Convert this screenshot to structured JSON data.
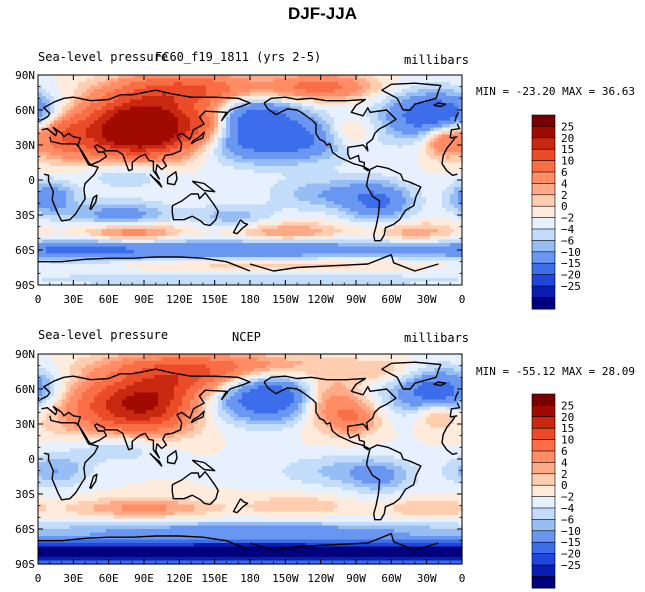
{
  "page": {
    "title": "DJF-JJA"
  },
  "colors": {
    "scale": [
      "#00007f",
      "#0a1eb4",
      "#1e46dc",
      "#3c6eeb",
      "#6996f0",
      "#96bef5",
      "#c3dcfa",
      "#e6f0ff",
      "#ffebdc",
      "#ffcdaf",
      "#ffaa87",
      "#ff8c64",
      "#fa6e46",
      "#eb4b28",
      "#c8280f",
      "#a00a00",
      "#780000"
    ]
  },
  "panels": [
    {
      "left_label": "Sea-level pressure",
      "center_label": "FC60_f19_1811 (yrs 2-5)",
      "units": "millibars",
      "stats": "MIN = -23.20 MAX =  36.63"
    },
    {
      "left_label": "Sea-level pressure",
      "center_label": "NCEP",
      "units": "millibars",
      "stats": "MIN = -55.12 MAX =  28.09"
    }
  ],
  "colorbar_labels": [
    "25",
    "20",
    "15",
    "10",
    "6",
    "4",
    "2",
    "0",
    "−2",
    "−4",
    "−6",
    "−10",
    "−15",
    "−20",
    "−25"
  ],
  "chart_data": [
    {
      "type": "heatmap",
      "title": "Sea-level pressure FC60_f19_1811 (yrs 2-5)",
      "units": "millibars",
      "x_ticks": [
        "0",
        "30E",
        "60E",
        "90E",
        "120E",
        "150E",
        "180",
        "150W",
        "120W",
        "90W",
        "60W",
        "30W",
        "0"
      ],
      "y_ticks": [
        "90N",
        "60N",
        "30N",
        "0",
        "30S",
        "60S",
        "90S"
      ],
      "xlim": [
        0,
        360
      ],
      "ylim": [
        -90,
        90
      ],
      "levels": [
        -25,
        -20,
        -15,
        -10,
        -6,
        -4,
        -2,
        0,
        2,
        4,
        6,
        10,
        15,
        20,
        25
      ],
      "min": -23.2,
      "max": 36.63,
      "features": [
        {
          "lon": 95,
          "lat": 45,
          "amp": 30,
          "slon": 30,
          "slat": 18
        },
        {
          "lon": 60,
          "lat": 40,
          "amp": 14,
          "slon": 35,
          "slat": 20
        },
        {
          "lon": 140,
          "lat": 48,
          "amp": 8,
          "slon": 15,
          "slat": 12
        },
        {
          "lon": 130,
          "lat": 78,
          "amp": 14,
          "slon": 40,
          "slat": 10
        },
        {
          "lon": 240,
          "lat": 80,
          "amp": 12,
          "slon": 30,
          "slat": 8
        },
        {
          "lon": 345,
          "lat": 35,
          "amp": 12,
          "slon": 12,
          "slat": 10
        },
        {
          "lon": 20,
          "lat": 40,
          "amp": 10,
          "slon": 15,
          "slat": 12
        },
        {
          "lon": 265,
          "lat": 40,
          "amp": 6,
          "slon": 15,
          "slat": 10
        },
        {
          "lon": 200,
          "lat": 35,
          "amp": -14,
          "slon": 45,
          "slat": 14
        },
        {
          "lon": 340,
          "lat": 55,
          "amp": -16,
          "slon": 30,
          "slat": 14
        },
        {
          "lon": 185,
          "lat": 58,
          "amp": -10,
          "slon": 25,
          "slat": 10
        },
        {
          "lon": 75,
          "lat": 10,
          "amp": -8,
          "slon": 30,
          "slat": 12
        },
        {
          "lon": 10,
          "lat": -15,
          "amp": -9,
          "slon": 15,
          "slat": 10
        },
        {
          "lon": 290,
          "lat": -20,
          "amp": -9,
          "slon": 20,
          "slat": 12
        },
        {
          "lon": 250,
          "lat": -12,
          "amp": -6,
          "slon": 35,
          "slat": 10
        },
        {
          "lon": 70,
          "lat": -30,
          "amp": -8,
          "slon": 30,
          "slat": 8
        },
        {
          "lon": 165,
          "lat": -32,
          "amp": -5,
          "slon": 25,
          "slat": 8
        },
        {
          "lon": 80,
          "lat": -45,
          "amp": 9,
          "slon": 30,
          "slat": 6
        },
        {
          "lon": 210,
          "lat": -45,
          "amp": 7,
          "slon": 35,
          "slat": 6
        },
        {
          "lon": 320,
          "lat": -45,
          "amp": 6,
          "slon": 25,
          "slat": 6
        },
        {
          "lon": 180,
          "lat": -60,
          "amp": -10,
          "slon": 120,
          "slat": 7
        },
        {
          "lon": 30,
          "lat": -60,
          "amp": -8,
          "slon": 40,
          "slat": 6
        },
        {
          "lon": 200,
          "lat": -72,
          "amp": 5,
          "slon": 90,
          "slat": 5
        },
        {
          "lon": 180,
          "lat": -85,
          "amp": -3,
          "slon": 200,
          "slat": 6
        }
      ]
    },
    {
      "type": "heatmap",
      "title": "Sea-level pressure NCEP",
      "units": "millibars",
      "x_ticks": [
        "0",
        "30E",
        "60E",
        "90E",
        "120E",
        "150E",
        "180",
        "150W",
        "120W",
        "90W",
        "60W",
        "30W",
        "0"
      ],
      "y_ticks": [
        "90N",
        "60N",
        "30N",
        "0",
        "30S",
        "60S",
        "90S"
      ],
      "xlim": [
        0,
        360
      ],
      "ylim": [
        -90,
        90
      ],
      "levels": [
        -25,
        -20,
        -15,
        -10,
        -6,
        -4,
        -2,
        0,
        2,
        4,
        6,
        10,
        15,
        20,
        25
      ],
      "min": -55.12,
      "max": 28.09,
      "features": [
        {
          "lon": 95,
          "lat": 48,
          "amp": 20,
          "slon": 28,
          "slat": 18
        },
        {
          "lon": 55,
          "lat": 45,
          "amp": 12,
          "slon": 35,
          "slat": 18
        },
        {
          "lon": 130,
          "lat": 68,
          "amp": 10,
          "slon": 30,
          "slat": 10
        },
        {
          "lon": 150,
          "lat": 80,
          "amp": 10,
          "slon": 60,
          "slat": 8
        },
        {
          "lon": 245,
          "lat": 50,
          "amp": 12,
          "slon": 20,
          "slat": 15
        },
        {
          "lon": 268,
          "lat": 35,
          "amp": 8,
          "slon": 15,
          "slat": 10
        },
        {
          "lon": 338,
          "lat": 38,
          "amp": 7,
          "slon": 12,
          "slat": 8
        },
        {
          "lon": 300,
          "lat": 75,
          "amp": 4,
          "slon": 25,
          "slat": 8
        },
        {
          "lon": 200,
          "lat": 52,
          "amp": -16,
          "slon": 35,
          "slat": 14
        },
        {
          "lon": 340,
          "lat": 58,
          "amp": -14,
          "slon": 28,
          "slat": 14
        },
        {
          "lon": 70,
          "lat": 12,
          "amp": -6,
          "slon": 30,
          "slat": 10
        },
        {
          "lon": 15,
          "lat": -10,
          "amp": -6,
          "slon": 20,
          "slat": 10
        },
        {
          "lon": 290,
          "lat": -15,
          "amp": -6,
          "slon": 20,
          "slat": 10
        },
        {
          "lon": 250,
          "lat": -10,
          "amp": -4,
          "slon": 35,
          "slat": 10
        },
        {
          "lon": 90,
          "lat": -42,
          "amp": 7,
          "slon": 40,
          "slat": 6
        },
        {
          "lon": 220,
          "lat": -40,
          "amp": 4,
          "slon": 30,
          "slat": 6
        },
        {
          "lon": 330,
          "lat": -42,
          "amp": 4,
          "slon": 25,
          "slat": 6
        },
        {
          "lon": 180,
          "lat": -62,
          "amp": -8,
          "slon": 150,
          "slat": 6
        },
        {
          "lon": 180,
          "lat": -80,
          "amp": -34,
          "slon": 400,
          "slat": 6
        }
      ]
    }
  ]
}
